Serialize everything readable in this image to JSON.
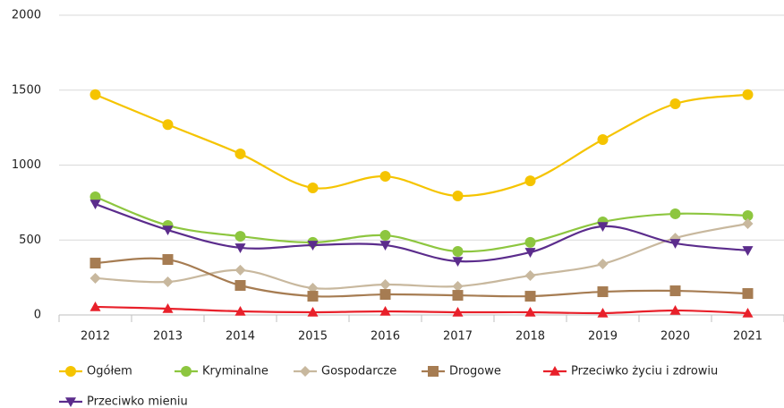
{
  "chart_data": {
    "type": "line",
    "categories": [
      "2012",
      "2013",
      "2014",
      "2015",
      "2016",
      "2017",
      "2018",
      "2019",
      "2020",
      "2021"
    ],
    "ylim": [
      0,
      2000
    ],
    "yticks": [
      0,
      500,
      1000,
      1500,
      2000
    ],
    "grid": true,
    "smooth": true,
    "legend": "bottom",
    "series": [
      {
        "name": "Ogółem",
        "color": "#f5c400",
        "marker": "circle",
        "values": [
          1470,
          1270,
          1075,
          848,
          925,
          794,
          895,
          1170,
          1409,
          1470
        ]
      },
      {
        "name": "Kryminalne",
        "color": "#8dc63f",
        "marker": "circle",
        "values": [
          788,
          597,
          525,
          484,
          531,
          424,
          484,
          621,
          675,
          663
        ]
      },
      {
        "name": "Gospodarcze",
        "color": "#c8b89e",
        "marker": "diamond",
        "values": [
          245,
          221,
          299,
          179,
          203,
          191,
          263,
          340,
          513,
          609
        ]
      },
      {
        "name": "Drogowe",
        "color": "#a67c52",
        "marker": "square",
        "values": [
          346,
          370,
          197,
          125,
          137,
          131,
          125,
          155,
          161,
          143
        ]
      },
      {
        "name": "Przeciwko życiu i zdrowiu",
        "color": "#e8202a",
        "marker": "triangle",
        "values": [
          54,
          42,
          24,
          18,
          24,
          18,
          18,
          12,
          30,
          12
        ]
      },
      {
        "name": "Przeciwko mieniu",
        "color": "#5b2c8c",
        "marker": "triangle-down",
        "values": [
          740,
          567,
          448,
          466,
          466,
          358,
          418,
          591,
          478,
          430
        ]
      }
    ]
  }
}
